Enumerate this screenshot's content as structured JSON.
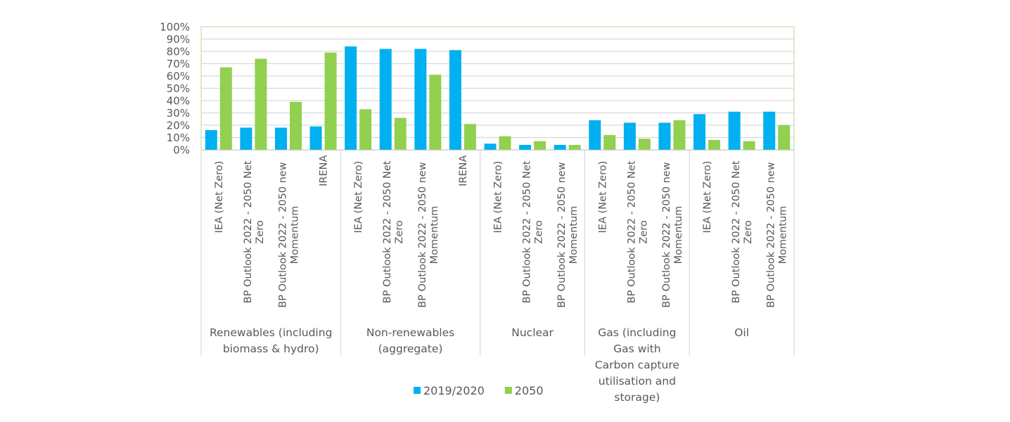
{
  "chart_data": {
    "type": "bar",
    "title": "",
    "xlabel": "",
    "ylabel": "",
    "ylim": [
      0,
      100
    ],
    "yticks": [
      "0%",
      "10%",
      "20%",
      "30%",
      "40%",
      "50%",
      "60%",
      "70%",
      "80%",
      "90%",
      "100%"
    ],
    "grid": true,
    "legend_position": "bottom",
    "groups": [
      {
        "label": [
          "Renewables (including",
          "biomass & hydro)"
        ],
        "categories": [
          {
            "label": [
              "IEA (Net Zero)"
            ]
          },
          {
            "label": [
              "BP Outlook 2022 - 2050 Net",
              "Zero"
            ]
          },
          {
            "label": [
              "BP Outlook 2022 - 2050  new",
              "Momentum"
            ]
          },
          {
            "label": [
              "IRENA"
            ]
          }
        ]
      },
      {
        "label": [
          "Non-renewables",
          "(aggregate)"
        ],
        "categories": [
          {
            "label": [
              "IEA (Net Zero)"
            ]
          },
          {
            "label": [
              "BP Outlook 2022 - 2050 Net",
              "Zero"
            ]
          },
          {
            "label": [
              "BP Outlook 2022 - 2050  new",
              "Momentum"
            ]
          },
          {
            "label": [
              "IRENA"
            ]
          }
        ]
      },
      {
        "label": [
          "Nuclear"
        ],
        "categories": [
          {
            "label": [
              "IEA (Net Zero)"
            ]
          },
          {
            "label": [
              "BP Outlook 2022 - 2050 Net",
              "Zero"
            ]
          },
          {
            "label": [
              "BP Outlook 2022 - 2050  new",
              "Momentum"
            ]
          }
        ]
      },
      {
        "label": [
          "Gas (including",
          "Gas with",
          "Carbon capture",
          "utilisation and",
          "storage)"
        ],
        "categories": [
          {
            "label": [
              "IEA (Net Zero)"
            ]
          },
          {
            "label": [
              "BP Outlook 2022 - 2050 Net",
              "Zero"
            ]
          },
          {
            "label": [
              "BP Outlook 2022 - 2050  new",
              "Momentum"
            ]
          }
        ]
      },
      {
        "label": [
          "Oil"
        ],
        "categories": [
          {
            "label": [
              "IEA (Net Zero)"
            ]
          },
          {
            "label": [
              "BP Outlook 2022 - 2050 Net",
              "Zero"
            ]
          },
          {
            "label": [
              "BP Outlook 2022 - 2050  new",
              "Momentum"
            ]
          }
        ]
      }
    ],
    "series": [
      {
        "name": "2019/2020",
        "color": "#00b0f0",
        "values": [
          16,
          18,
          18,
          19,
          84,
          82,
          82,
          81,
          5,
          4,
          4,
          24,
          22,
          22,
          29,
          31,
          31
        ]
      },
      {
        "name": "2050",
        "color": "#92d050",
        "values": [
          67,
          74,
          39,
          79,
          33,
          26,
          61,
          21,
          11,
          7,
          4,
          12,
          9,
          24,
          8,
          7,
          20
        ]
      }
    ]
  }
}
